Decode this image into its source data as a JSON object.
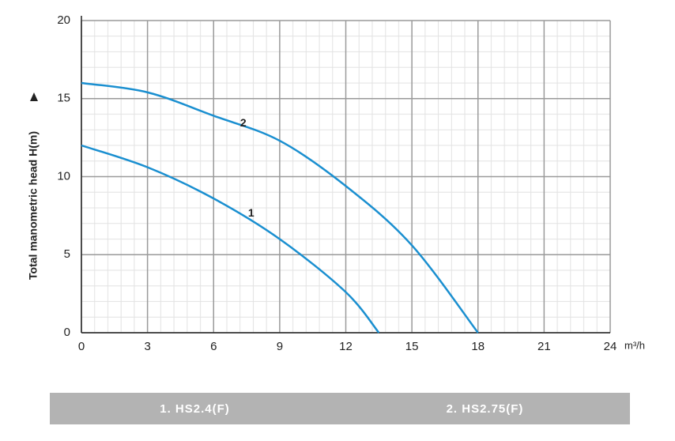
{
  "chart_data": {
    "type": "line",
    "y_label": "Total manometric head H(m)",
    "x_label": "m³/h",
    "xlim": [
      0,
      24
    ],
    "xticks": [
      0,
      3,
      6,
      9,
      12,
      15,
      18,
      21,
      24
    ],
    "ylim": [
      0,
      20
    ],
    "yticks": [
      0,
      5,
      10,
      15,
      20
    ],
    "grid": true,
    "minor_grid": 5,
    "series": [
      {
        "name": "1. HS2.4(F)",
        "label": "1",
        "color": "#1a8fd0",
        "x": [
          0,
          3,
          6,
          9,
          12,
          13.5
        ],
        "values": [
          12,
          10.6,
          8.6,
          6.0,
          2.6,
          0
        ]
      },
      {
        "name": "2. HS2.75(F)",
        "label": "2",
        "color": "#1a8fd0",
        "x": [
          0,
          3,
          6,
          9,
          12,
          15,
          18
        ],
        "values": [
          16,
          15.4,
          13.9,
          12.3,
          9.4,
          5.6,
          0
        ]
      }
    ]
  }
}
